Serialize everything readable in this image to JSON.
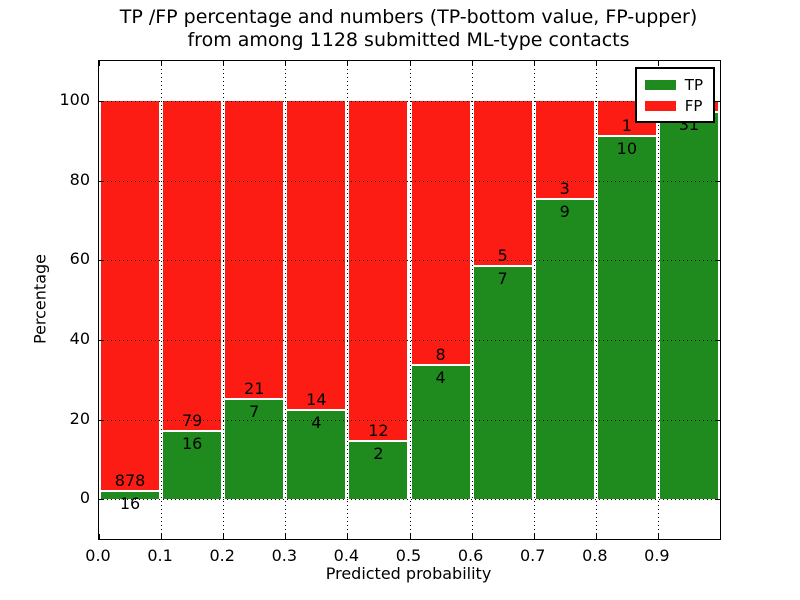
{
  "figure": {
    "title_line1": "TP /FP percentage and numbers (TP-bottom value, FP-upper)",
    "title_line2": "from among 1128 submitted ML-type contacts",
    "xlabel": "Predicted probability",
    "ylabel": "Percentage"
  },
  "legend": {
    "position": "upper right",
    "items": [
      {
        "label": "TP",
        "color": "#1f8b1f"
      },
      {
        "label": "FP",
        "color": "#fd1c14"
      }
    ]
  },
  "colors": {
    "tp_green": "#1f8b1f",
    "fp_red": "#fd1c14",
    "grid": "#000000",
    "frame": "#000000",
    "background": "#ffffff"
  },
  "chart_data": {
    "type": "bar",
    "stacked": true,
    "normalized_to_percent": 100,
    "title": "TP /FP percentage and numbers (TP-bottom value, FP-upper) from among 1128 submitted ML-type contacts",
    "xlabel": "Predicted probability",
    "ylabel": "Percentage",
    "xlim": [
      0.0,
      1.0
    ],
    "ylim": [
      -10,
      110
    ],
    "grid": true,
    "legend_position": "upper right",
    "x_ticks": [
      {
        "value": 0.0,
        "label": "0.0"
      },
      {
        "value": 0.1,
        "label": "0.1"
      },
      {
        "value": 0.2,
        "label": "0.2"
      },
      {
        "value": 0.3,
        "label": "0.3"
      },
      {
        "value": 0.4,
        "label": "0.4"
      },
      {
        "value": 0.5,
        "label": "0.5"
      },
      {
        "value": 0.6,
        "label": "0.6"
      },
      {
        "value": 0.7,
        "label": "0.7"
      },
      {
        "value": 0.8,
        "label": "0.8"
      },
      {
        "value": 0.9,
        "label": "0.9"
      }
    ],
    "y_ticks": [
      {
        "value": 0,
        "label": "0"
      },
      {
        "value": 20,
        "label": "20"
      },
      {
        "value": 40,
        "label": "40"
      },
      {
        "value": 60,
        "label": "60"
      },
      {
        "value": 80,
        "label": "80"
      },
      {
        "value": 100,
        "label": "100"
      }
    ],
    "series": [
      {
        "name": "TP",
        "color": "#1f8b1f",
        "position": "bottom"
      },
      {
        "name": "FP",
        "color": "#fd1c14",
        "position": "top"
      }
    ],
    "bins": [
      {
        "x0": 0.0,
        "x1": 0.1,
        "tp_count": 16,
        "fp_count": 878,
        "tp_pct": 1.79,
        "tp_label": "16",
        "fp_label": "878"
      },
      {
        "x0": 0.1,
        "x1": 0.2,
        "tp_count": 16,
        "fp_count": 79,
        "tp_pct": 16.84,
        "tp_label": "16",
        "fp_label": "79"
      },
      {
        "x0": 0.2,
        "x1": 0.3,
        "tp_count": 7,
        "fp_count": 21,
        "tp_pct": 25.0,
        "tp_label": "7",
        "fp_label": "21"
      },
      {
        "x0": 0.3,
        "x1": 0.4,
        "tp_count": 4,
        "fp_count": 14,
        "tp_pct": 22.22,
        "tp_label": "4",
        "fp_label": "14"
      },
      {
        "x0": 0.4,
        "x1": 0.5,
        "tp_count": 2,
        "fp_count": 12,
        "tp_pct": 14.29,
        "tp_label": "2",
        "fp_label": "12"
      },
      {
        "x0": 0.5,
        "x1": 0.6,
        "tp_count": 4,
        "fp_count": 8,
        "tp_pct": 33.33,
        "tp_label": "4",
        "fp_label": "8"
      },
      {
        "x0": 0.6,
        "x1": 0.7,
        "tp_count": 7,
        "fp_count": 5,
        "tp_pct": 58.33,
        "tp_label": "7",
        "fp_label": "5"
      },
      {
        "x0": 0.7,
        "x1": 0.8,
        "tp_count": 9,
        "fp_count": 3,
        "tp_pct": 75.0,
        "tp_label": "9",
        "fp_label": "3"
      },
      {
        "x0": 0.8,
        "x1": 0.9,
        "tp_count": 10,
        "fp_count": 1,
        "tp_pct": 90.91,
        "tp_label": "10",
        "fp_label": "1"
      },
      {
        "x0": 0.9,
        "x1": 1.0,
        "tp_count": 31,
        "fp_count": null,
        "tp_pct": 96.88,
        "tp_label": "31",
        "fp_label": null
      }
    ]
  }
}
